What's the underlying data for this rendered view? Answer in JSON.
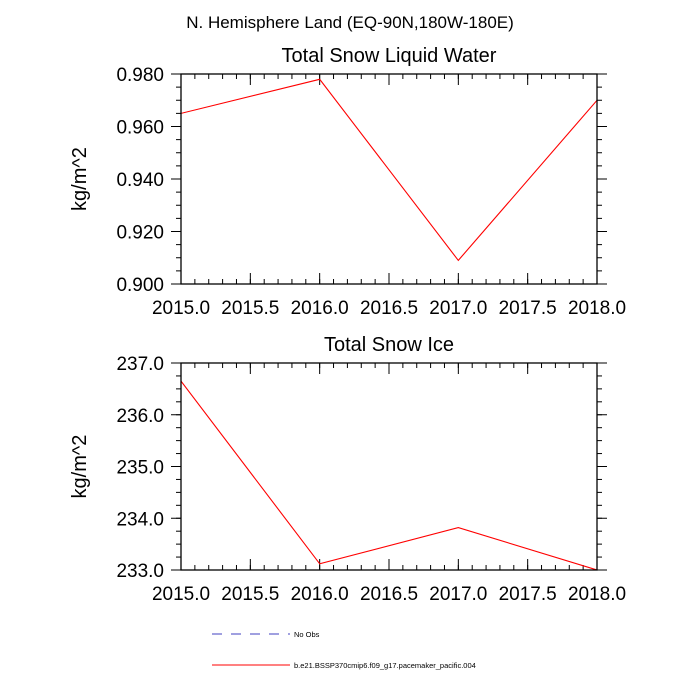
{
  "page": {
    "title": "N. Hemisphere Land (EQ-90N,180W-180E)"
  },
  "chart_data": [
    {
      "type": "line",
      "title": "Total Snow Liquid Water",
      "xlabel": "",
      "ylabel": "kg/m^2",
      "xlim": [
        2015.0,
        2018.0
      ],
      "ylim": [
        0.9,
        0.98
      ],
      "xticks": [
        2015.0,
        2015.5,
        2016.0,
        2016.5,
        2017.0,
        2017.5,
        2018.0
      ],
      "xtick_labels": [
        "2015.0",
        "2015.5",
        "2016.0",
        "2016.5",
        "2017.0",
        "2017.5",
        "2018.0"
      ],
      "yticks": [
        0.9,
        0.92,
        0.94,
        0.96,
        0.98
      ],
      "ytick_labels": [
        "0.900",
        "0.920",
        "0.940",
        "0.960",
        "0.980"
      ],
      "grid": false,
      "series": [
        {
          "name": "b.e21.BSSP370cmip6.f09_g17.pacemaker_pacific.004",
          "color": "#ff0000",
          "x": [
            2015,
            2016,
            2017,
            2018
          ],
          "y": [
            0.965,
            0.978,
            0.909,
            0.97
          ]
        }
      ]
    },
    {
      "type": "line",
      "title": "Total Snow Ice",
      "xlabel": "",
      "ylabel": "kg/m^2",
      "xlim": [
        2015.0,
        2018.0
      ],
      "ylim": [
        233.0,
        237.0
      ],
      "xticks": [
        2015.0,
        2015.5,
        2016.0,
        2016.5,
        2017.0,
        2017.5,
        2018.0
      ],
      "xtick_labels": [
        "2015.0",
        "2015.5",
        "2016.0",
        "2016.5",
        "2017.0",
        "2017.5",
        "2018.0"
      ],
      "yticks": [
        233.0,
        234.0,
        235.0,
        236.0,
        237.0
      ],
      "ytick_labels": [
        "233.0",
        "234.0",
        "235.0",
        "236.0",
        "237.0"
      ],
      "grid": false,
      "series": [
        {
          "name": "b.e21.BSSP370cmip6.f09_g17.pacemaker_pacific.004",
          "color": "#ff0000",
          "x": [
            2015,
            2016,
            2017,
            2018
          ],
          "y": [
            236.65,
            233.12,
            233.82,
            233.0
          ]
        }
      ]
    }
  ],
  "legend": {
    "placement": "bottom",
    "items": [
      {
        "label": "No Obs",
        "color": "#4040c0",
        "style": "dashed"
      },
      {
        "label": "b.e21.BSSP370cmip6.f09_g17.pacemaker_pacific.004",
        "color": "#ff0000",
        "style": "solid"
      }
    ]
  }
}
